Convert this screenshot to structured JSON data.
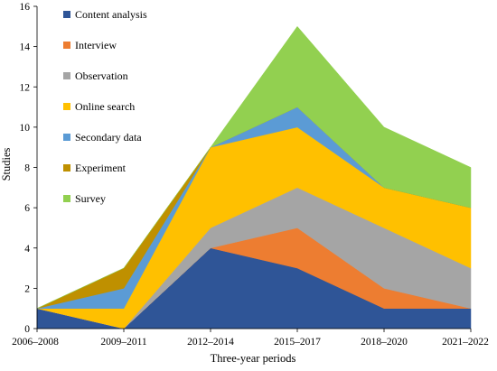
{
  "chart_data": {
    "type": "area",
    "stacked": true,
    "title": "",
    "xlabel": "Three-year periods",
    "ylabel": "Studies",
    "categories": [
      "2006–2008",
      "2009–2011",
      "2012–2014",
      "2015–2017",
      "2018–2020",
      "2021–2022"
    ],
    "ylim": [
      0,
      16
    ],
    "yticks": [
      "0",
      "2",
      "4",
      "6",
      "8",
      "10",
      "12",
      "14",
      "16"
    ],
    "grid": false,
    "legend_position": "top-left",
    "series": [
      {
        "name": "Content analysis",
        "color": "#2F5597",
        "values": [
          1,
          0,
          4,
          3,
          1,
          1
        ]
      },
      {
        "name": "Interview",
        "color": "#ED7D31",
        "values": [
          0,
          0,
          0,
          2,
          1,
          0
        ]
      },
      {
        "name": "Observation",
        "color": "#A5A5A5",
        "values": [
          0,
          0,
          1,
          2,
          3,
          2
        ]
      },
      {
        "name": "Online search",
        "color": "#FFC000",
        "values": [
          0,
          1,
          4,
          3,
          2,
          3
        ]
      },
      {
        "name": "Secondary data",
        "color": "#5B9BD5",
        "values": [
          0,
          1,
          0,
          1,
          0,
          0
        ]
      },
      {
        "name": "Experiment",
        "color": "#BF9000",
        "values": [
          0,
          1,
          0,
          0,
          0,
          0
        ]
      },
      {
        "name": "Survey",
        "color": "#92D050",
        "values": [
          0,
          0,
          0,
          4,
          3,
          2
        ]
      }
    ]
  }
}
